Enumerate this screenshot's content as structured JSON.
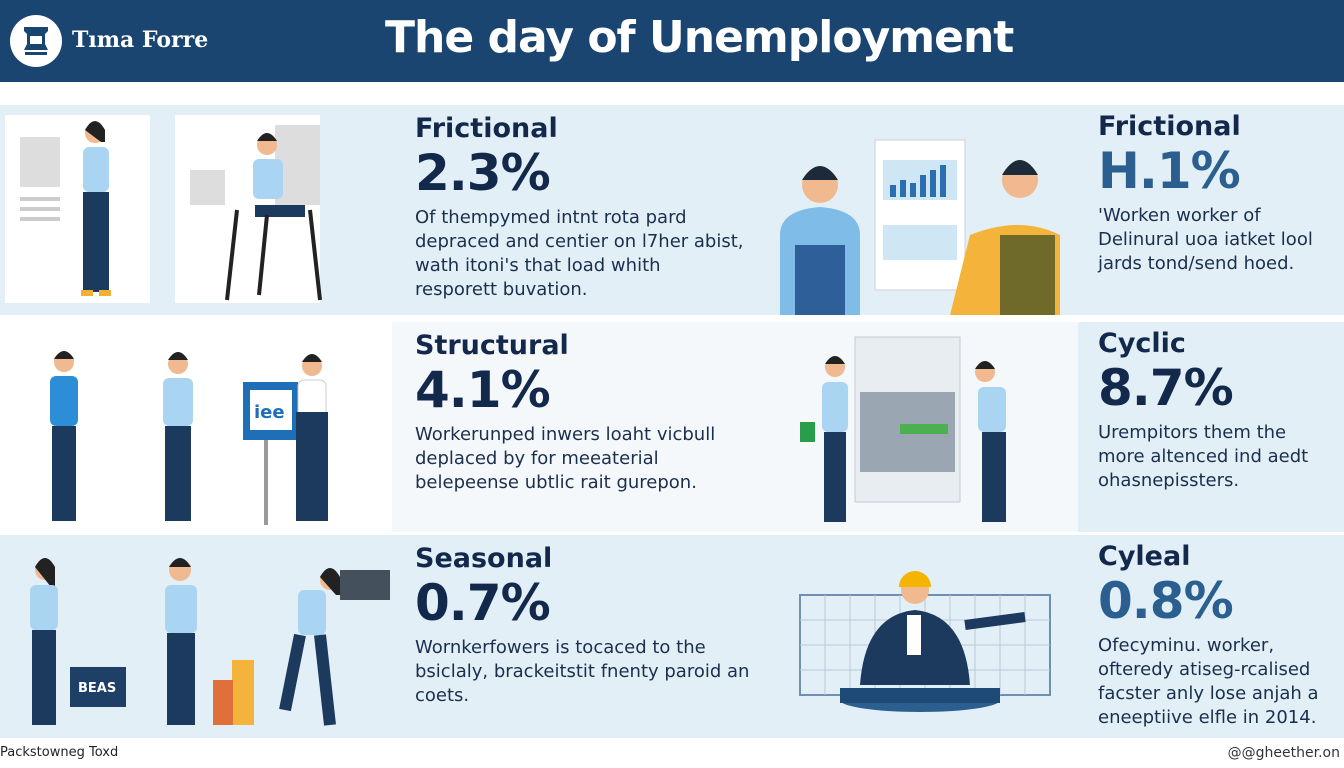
{
  "header": {
    "brand": "Tıma Forre",
    "title": "The day of Unemployment",
    "logo_icon": "crest-icon"
  },
  "colors": {
    "header": "#1a4570",
    "panel": "#e3eff7",
    "text": "#13294b",
    "accent": "#2a5f8f"
  },
  "rows": [
    {
      "left": {
        "heading": "Frictional",
        "pct": "2.3%",
        "text": "Of thempymed intnt rota pard depraced and centier on l7her abist, wath itoni's that load whith resporett buvation."
      },
      "right": {
        "heading": "Frictional",
        "pct": "H.1%",
        "text": "'Worken worker of Delinural uoa iatket lool jards tond/send hoed."
      }
    },
    {
      "left": {
        "heading": "Structural",
        "pct": "4.1%",
        "text": "Workerunped inwers loaht vicbull deplaced by for meeaterial belepeense ubtlic rait gurepon.",
        "sign": "iee"
      },
      "right": {
        "heading": "Cyclic",
        "pct": "8.7%",
        "text": "Urempitors them the more altenced ind aedt ohasnepissters."
      }
    },
    {
      "left": {
        "heading": "Seasonal",
        "pct": "0.7%",
        "text": "Wornkerfowers is tocaced to the bsiclaly, brackeitstit fnenty paroid an coets.",
        "sign": "BEAS"
      },
      "right": {
        "heading": "Cyleal",
        "pct": "0.8%",
        "text": "Ofecyminu. worker, ofteredy atiseg-rcalised facster anly lose anjah a eneeptiive elfle in 2014."
      }
    }
  ],
  "footer": {
    "left": "Packstowneg Toxd",
    "right": "@@gheether.on"
  }
}
